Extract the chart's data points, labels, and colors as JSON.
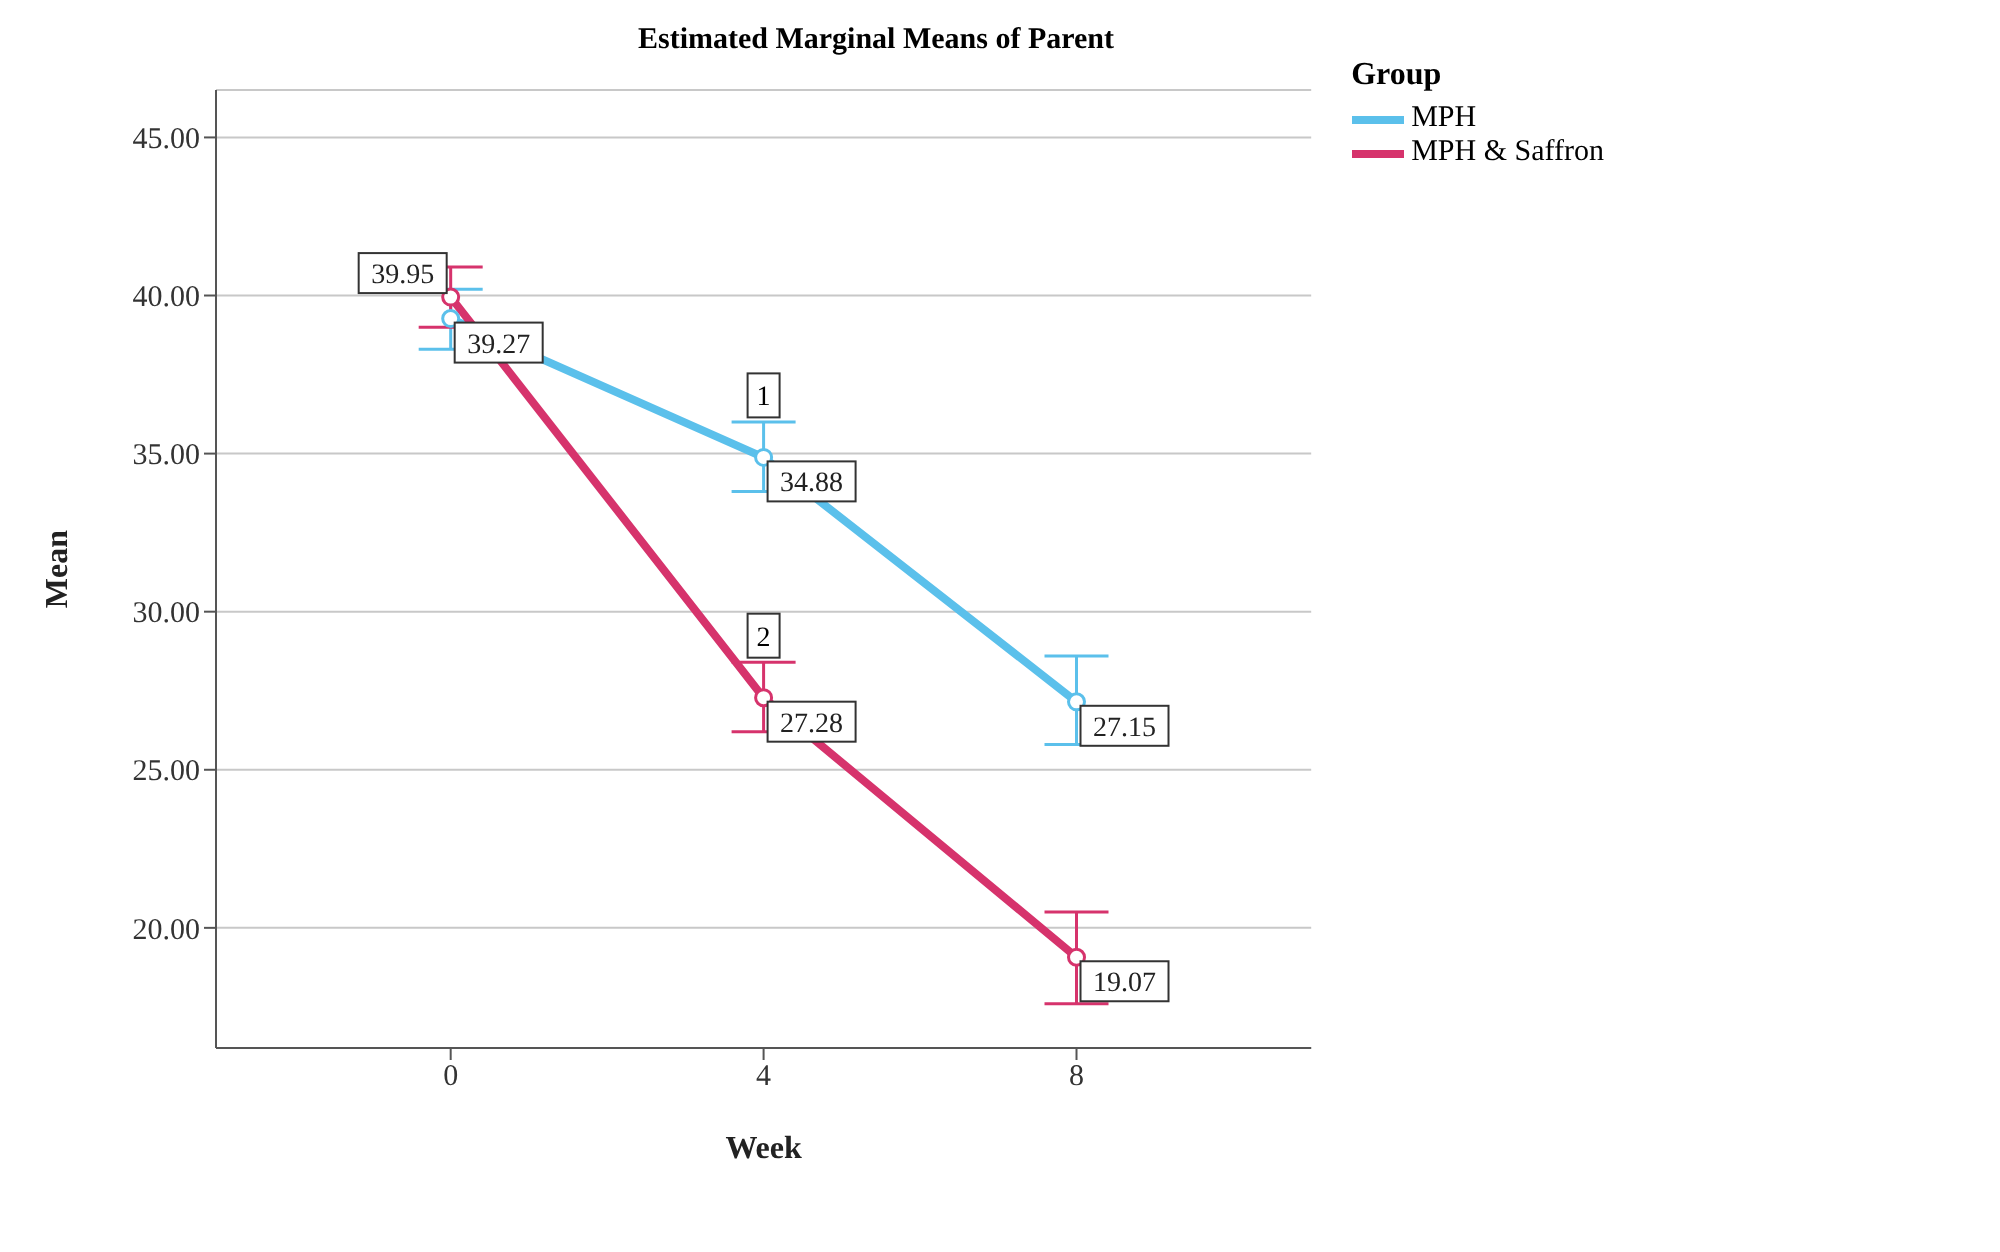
{
  "chart_data": {
    "type": "line",
    "title": "Estimated Marginal Means of Parent",
    "xlabel": "Week",
    "ylabel": "Mean",
    "legend_title": "Group",
    "categories": [
      "0",
      "4",
      "8"
    ],
    "series": [
      {
        "name": "MPH",
        "color": "#5bc0eb",
        "values": [
          39.27,
          34.88,
          27.15
        ],
        "errors": [
          [
            38.3,
            40.2
          ],
          [
            33.8,
            36.0
          ],
          [
            25.8,
            28.6
          ]
        ],
        "value_labels": [
          "39.27",
          "34.88",
          "27.15"
        ]
      },
      {
        "name": "MPH & Saffron",
        "color": "#d6336c",
        "values": [
          39.95,
          27.28,
          19.07
        ],
        "errors": [
          [
            39.0,
            40.9
          ],
          [
            26.2,
            28.4
          ],
          [
            17.6,
            20.5
          ]
        ],
        "value_labels": [
          "39.95",
          "27.28",
          "19.07"
        ]
      }
    ],
    "ylim": [
      16.2,
      46.5
    ],
    "yticks": [
      {
        "value": 20,
        "label": "20.00"
      },
      {
        "value": 25,
        "label": "25.00"
      },
      {
        "value": 30,
        "label": "30.00"
      },
      {
        "value": 35,
        "label": "35.00"
      },
      {
        "value": 40,
        "label": "40.00"
      },
      {
        "value": 45,
        "label": "45.00"
      }
    ],
    "annotations": [
      {
        "text": "1",
        "x": "4",
        "y": 34.88
      },
      {
        "text": "2",
        "x": "4",
        "y": 27.28
      }
    ],
    "grid": "y",
    "legend": "top right",
    "marker": "circle",
    "line_style": "solid"
  }
}
